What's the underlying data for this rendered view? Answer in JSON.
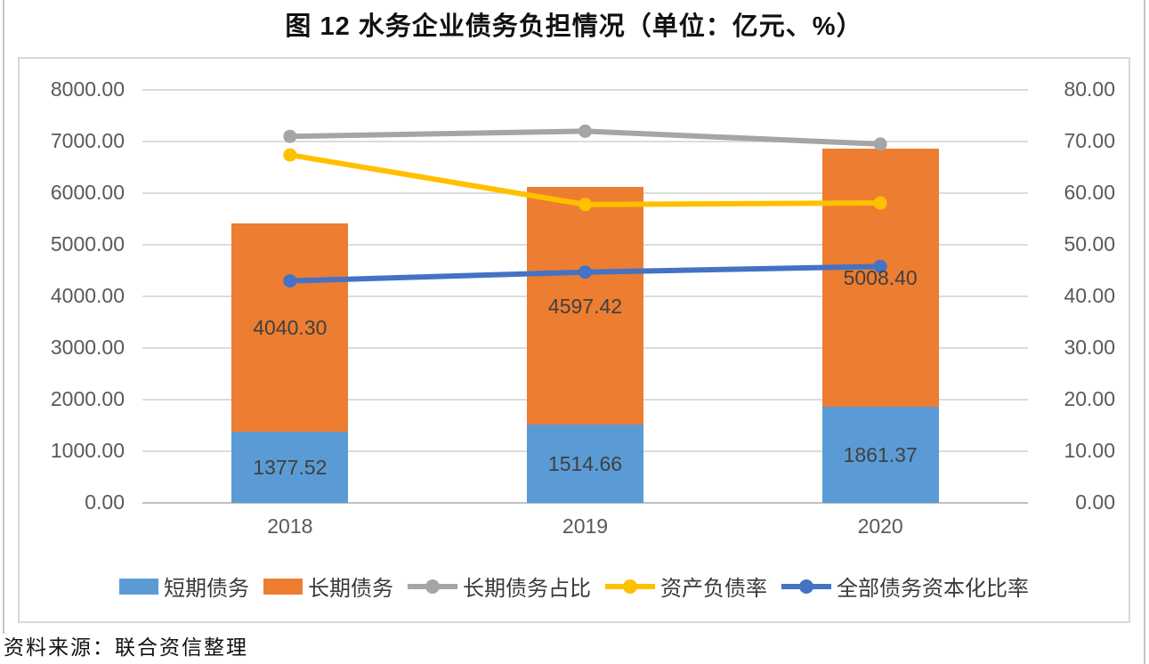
{
  "figure": {
    "title": "图 12  水务企业债务负担情况（单位：亿元、%）",
    "source": "资料来源：联合资信整理"
  },
  "chart_data": {
    "type": "bar",
    "subtype": "stacked-bar-with-lines",
    "categories": [
      "2018",
      "2019",
      "2020"
    ],
    "bar_series": [
      {
        "name": "短期债务",
        "color": "#5B9BD5",
        "values": [
          1377.52,
          1514.66,
          1861.37
        ],
        "labels": [
          "1377.52",
          "1514.66",
          "1861.37"
        ]
      },
      {
        "name": "长期债务",
        "color": "#ED7D31",
        "values": [
          4040.3,
          4597.42,
          5008.4
        ],
        "labels": [
          "4040.30",
          "4597.42",
          "5008.40"
        ]
      }
    ],
    "line_series": [
      {
        "name": "长期债务占比",
        "color": "#A5A5A5",
        "values": [
          71.0,
          72.0,
          69.5
        ]
      },
      {
        "name": "资产负债率",
        "color": "#FFC000",
        "values": [
          67.4,
          57.8,
          58.1
        ]
      },
      {
        "name": "全部债务资本化比率",
        "color": "#4472C4",
        "values": [
          43.0,
          44.7,
          45.8
        ]
      }
    ],
    "left_axis": {
      "min": 0,
      "max": 8000,
      "step": 1000,
      "ticks": [
        "8000.00",
        "7000.00",
        "6000.00",
        "5000.00",
        "4000.00",
        "3000.00",
        "2000.00",
        "1000.00",
        "0.00"
      ]
    },
    "right_axis": {
      "min": 0,
      "max": 80,
      "step": 10,
      "ticks": [
        "80.00",
        "70.00",
        "60.00",
        "50.00",
        "40.00",
        "30.00",
        "20.00",
        "10.00",
        "0.00"
      ]
    },
    "grid": true,
    "legend_position": "bottom"
  }
}
